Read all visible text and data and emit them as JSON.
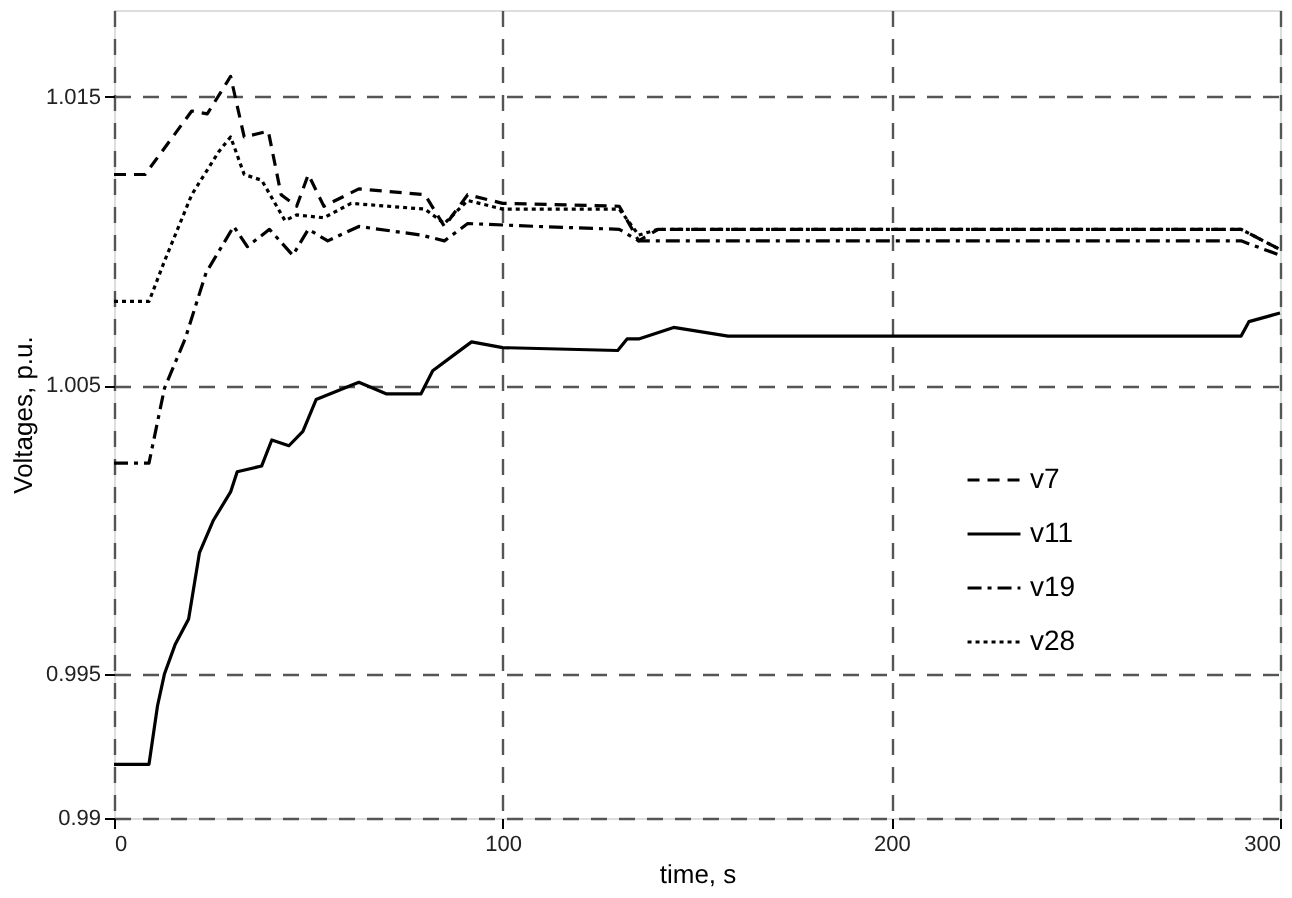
{
  "chart_data": {
    "type": "line",
    "xlabel": "time, s",
    "ylabel": "Voltages, p.u.",
    "xlim": [
      0,
      300
    ],
    "xticks": [
      0,
      100,
      200,
      300
    ],
    "ylim": [
      0.99,
      1.018
    ],
    "yticks": [
      0.99,
      0.995,
      1.005,
      1.015
    ],
    "grid": true,
    "legend": "right",
    "marker": "none",
    "series": [
      {
        "name": "v7",
        "color": "#000000",
        "line_style": "dashed",
        "x": [
          0,
          8,
          20,
          24,
          30,
          33.5,
          39.7,
          43,
          47,
          50,
          54,
          63,
          80,
          85,
          91,
          100,
          130,
          135,
          140,
          290,
          300
        ],
        "values": [
          1.0123,
          1.0123,
          1.0145,
          1.0144,
          1.0157,
          1.0136,
          1.0138,
          1.0116,
          1.0112,
          1.0123,
          1.0112,
          1.0118,
          1.0116,
          1.0105,
          1.0116,
          1.0113,
          1.0112,
          1.01,
          1.0104,
          1.0104,
          1.0097
        ]
      },
      {
        "name": "v11",
        "color": "#000000",
        "line_style": "solid",
        "x": [
          0,
          9,
          11.2,
          13,
          15.7,
          19.2,
          22,
          25.5,
          30,
          31.7,
          38,
          40.6,
          45,
          48.6,
          52,
          63,
          70,
          79,
          82,
          88,
          92,
          100,
          129.6,
          132,
          135,
          144,
          158,
          290,
          292,
          300
        ],
        "values": [
          0.99186,
          0.99186,
          0.99389,
          0.995,
          0.996,
          0.9969,
          0.9992,
          1.0003,
          1.0013,
          1.002,
          1.0022,
          1.0031,
          1.0029,
          1.0034,
          1.0045,
          1.0051,
          1.0047,
          1.0047,
          1.0055,
          1.0061,
          1.0065,
          1.0063,
          1.0062,
          1.0066,
          1.0066,
          1.007,
          1.0067,
          1.0067,
          1.0072,
          1.0075
        ]
      },
      {
        "name": "v19",
        "color": "#000000",
        "line_style": "dashdot",
        "x": [
          0,
          9,
          13,
          18.3,
          23.7,
          30.8,
          34.3,
          40,
          46,
          50,
          55,
          63,
          79,
          85,
          91,
          109,
          130,
          135,
          290,
          300
        ],
        "values": [
          1.0023,
          1.0023,
          1.0049,
          1.0066,
          1.0089,
          1.0105,
          1.0098,
          1.0104,
          1.0095,
          1.0104,
          1.01,
          1.0105,
          1.0102,
          1.01,
          1.0106,
          1.0105,
          1.0104,
          1.01,
          1.01,
          1.0095
        ]
      },
      {
        "name": "v28",
        "color": "#000000",
        "line_style": "dotted",
        "x": [
          0,
          9,
          13,
          20,
          27,
          30,
          33.5,
          38,
          44,
          47,
          54,
          61,
          80,
          85,
          91,
          100,
          130,
          135,
          140,
          290,
          300
        ],
        "values": [
          1.0079,
          1.0079,
          1.0093,
          1.0116,
          1.0131,
          1.0136,
          1.0123,
          1.0121,
          1.0107,
          1.0109,
          1.0108,
          1.0113,
          1.0111,
          1.0106,
          1.0114,
          1.0111,
          1.0111,
          1.0102,
          1.0104,
          1.0104,
          1.0097
        ]
      }
    ]
  }
}
